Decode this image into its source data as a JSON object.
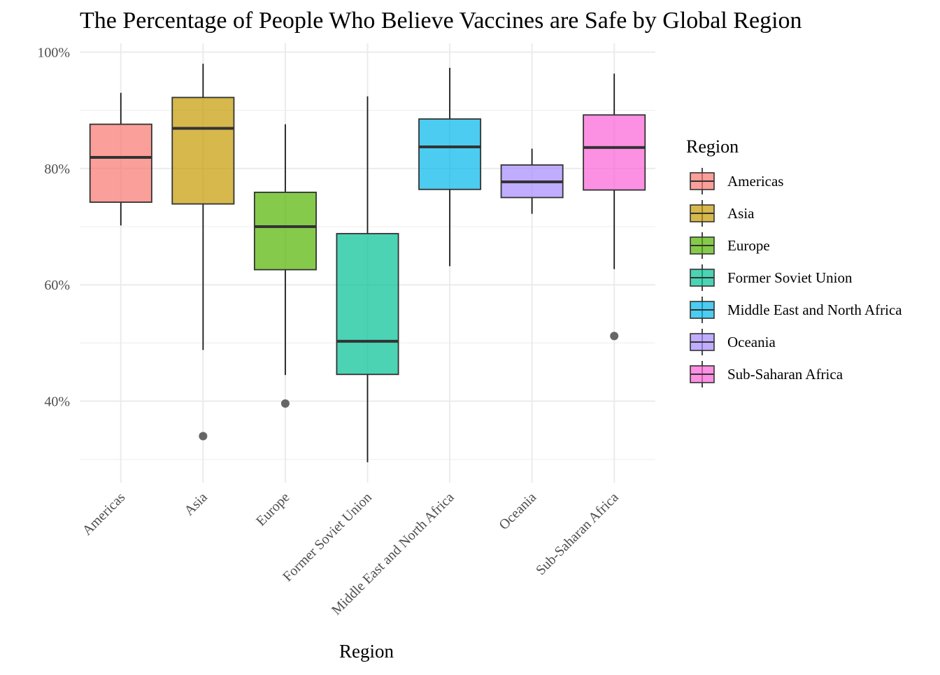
{
  "chart_data": {
    "type": "boxplot",
    "title": "The Percentage of People Who Believe Vaccines are Safe by Global Region",
    "xlabel": "Region",
    "ylabel": "",
    "ylim": [
      26,
      101.5
    ],
    "y_ticks": [
      40,
      60,
      80,
      100
    ],
    "y_tick_labels": [
      "40%",
      "60%",
      "80%",
      "100%"
    ],
    "grid": true,
    "legend": {
      "title": "Region",
      "placement": "right"
    },
    "categories": [
      "Americas",
      "Asia",
      "Europe",
      "Former Soviet Union",
      "Middle East and North Africa",
      "Oceania",
      "Sub-Saharan Africa"
    ],
    "series": [
      {
        "name": "Americas",
        "color": "#F8766D",
        "min": 70.2,
        "q1": 74.2,
        "median": 81.9,
        "q3": 87.6,
        "max": 93.0,
        "outliers": []
      },
      {
        "name": "Asia",
        "color": "#C49A00",
        "min": 48.8,
        "q1": 73.9,
        "median": 86.9,
        "q3": 92.2,
        "max": 98.0,
        "outliers": [
          34.0
        ]
      },
      {
        "name": "Europe",
        "color": "#53B400",
        "min": 44.5,
        "q1": 62.6,
        "median": 70.0,
        "q3": 75.9,
        "max": 87.6,
        "outliers": [
          39.6
        ]
      },
      {
        "name": "Former Soviet Union",
        "color": "#00C094",
        "min": 29.5,
        "q1": 44.6,
        "median": 50.3,
        "q3": 68.8,
        "max": 92.4,
        "outliers": []
      },
      {
        "name": "Middle East and North Africa",
        "color": "#00B6EB",
        "min": 63.2,
        "q1": 76.4,
        "median": 83.7,
        "q3": 88.5,
        "max": 97.3,
        "outliers": []
      },
      {
        "name": "Oceania",
        "color": "#A58AFF",
        "min": 72.2,
        "q1": 75.0,
        "median": 77.7,
        "q3": 80.6,
        "max": 83.4,
        "outliers": []
      },
      {
        "name": "Sub-Saharan Africa",
        "color": "#FB61D7",
        "min": 62.7,
        "q1": 76.3,
        "median": 83.6,
        "q3": 89.2,
        "max": 96.3,
        "outliers": [
          51.2
        ]
      }
    ]
  }
}
